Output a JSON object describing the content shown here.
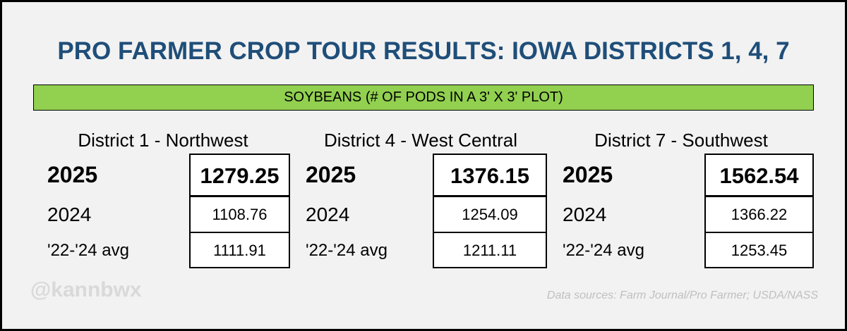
{
  "header": {
    "title": "PRO FARMER CROP TOUR RESULTS: IOWA DISTRICTS 1, 4, 7",
    "subtitle": "SOYBEANS (# OF PODS IN A 3' X 3' PLOT)"
  },
  "districts": [
    {
      "name": "District 1 - Northwest",
      "rows": [
        {
          "label": "2025",
          "value": "1279.25"
        },
        {
          "label": "2024",
          "value": "1108.76"
        },
        {
          "label": "'22-'24 avg",
          "value": "1111.91"
        }
      ]
    },
    {
      "name": "District 4 - West Central",
      "rows": [
        {
          "label": "2025",
          "value": "1376.15"
        },
        {
          "label": "2024",
          "value": "1254.09"
        },
        {
          "label": "'22-'24 avg",
          "value": "1211.11"
        }
      ]
    },
    {
      "name": "District 7 - Southwest",
      "rows": [
        {
          "label": "2025",
          "value": "1562.54"
        },
        {
          "label": "2024",
          "value": "1366.22"
        },
        {
          "label": "'22-'24 avg",
          "value": "1253.45"
        }
      ]
    }
  ],
  "watermark": "@kannbwx",
  "source": "Data sources: Farm Journal/Pro Farmer; USDA/NASS"
}
